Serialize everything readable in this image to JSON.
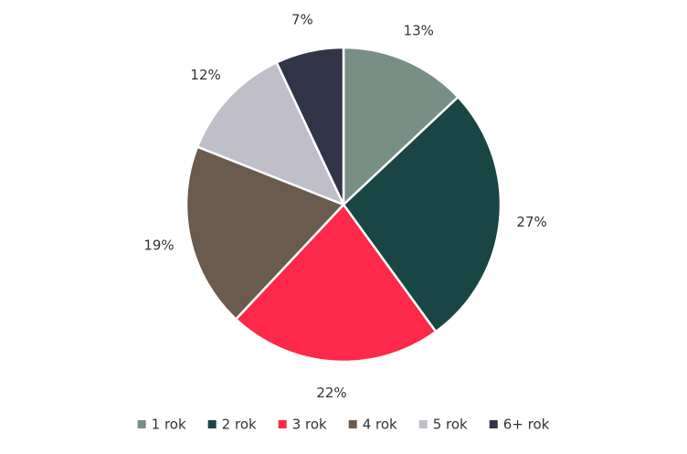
{
  "chart_data": {
    "type": "pie",
    "categories": [
      "1 rok",
      "2 rok",
      "3 rok",
      "4 rok",
      "5 rok",
      "6+ rok"
    ],
    "values": [
      13,
      27,
      22,
      19,
      12,
      7
    ],
    "value_labels": [
      "13%",
      "27%",
      "22%",
      "19%",
      "12%",
      "7%"
    ],
    "colors": [
      "#778f85",
      "#1a4545",
      "#fe284a",
      "#6b5b4e",
      "#c0bec8",
      "#32344a"
    ],
    "legend": "bottom"
  }
}
